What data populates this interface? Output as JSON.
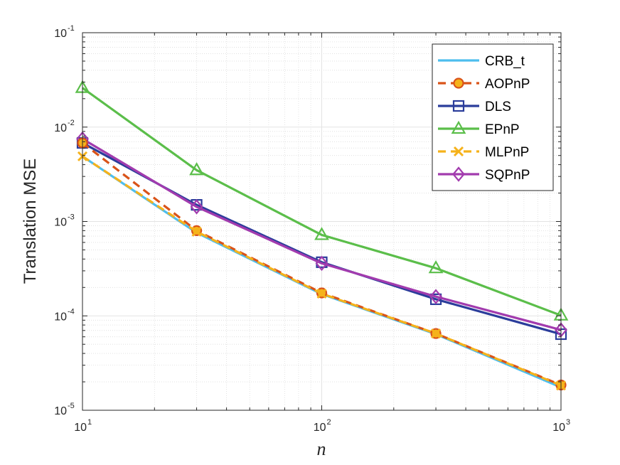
{
  "chart_data": {
    "type": "line",
    "xscale": "log",
    "yscale": "log",
    "xlabel": "n",
    "ylabel": "Translation MSE",
    "xlim": [
      10,
      1000
    ],
    "ylim": [
      1e-05,
      0.1
    ],
    "grid": true,
    "minor_grid": true,
    "legend_position": "top-right",
    "x_ticks": [
      {
        "base": "10",
        "exp": "1",
        "value": 10
      },
      {
        "base": "10",
        "exp": "2",
        "value": 100
      },
      {
        "base": "10",
        "exp": "3",
        "value": 1000
      }
    ],
    "y_ticks": [
      {
        "base": "10",
        "exp": "-5",
        "value": 1e-05
      },
      {
        "base": "10",
        "exp": "-4",
        "value": 0.0001
      },
      {
        "base": "10",
        "exp": "-3",
        "value": 0.001
      },
      {
        "base": "10",
        "exp": "-2",
        "value": 0.01
      },
      {
        "base": "10",
        "exp": "-1",
        "value": 0.1
      }
    ],
    "x": [
      10,
      30,
      100,
      300,
      1000
    ],
    "series": [
      {
        "name": "CRB_t",
        "color": "#4DBEEE",
        "dash": "solid",
        "marker": "none",
        "values": [
          0.0049,
          0.00076,
          0.00017,
          6.4e-05,
          1.75e-05
        ]
      },
      {
        "name": "AOPnP",
        "color": "#D95319",
        "dash": "dashed",
        "marker": "circle",
        "values": [
          0.0068,
          0.0008,
          0.000175,
          6.5e-05,
          1.85e-05
        ]
      },
      {
        "name": "DLS",
        "color": "#2B3D9B",
        "dash": "solid",
        "marker": "square",
        "values": [
          0.0068,
          0.0015,
          0.00037,
          0.00015,
          6.4e-05
        ]
      },
      {
        "name": "EPnP",
        "color": "#5BBE4A",
        "dash": "solid",
        "marker": "triangle",
        "values": [
          0.026,
          0.0035,
          0.00072,
          0.00032,
          0.000101
        ]
      },
      {
        "name": "MLPnP",
        "color": "#F5B21B",
        "dash": "dashed",
        "marker": "x",
        "values": [
          0.0049,
          0.00078,
          0.000172,
          6.5e-05,
          1.83e-05
        ]
      },
      {
        "name": "SQPnP",
        "color": "#A23BAE",
        "dash": "solid",
        "marker": "diamond",
        "values": [
          0.0075,
          0.00143,
          0.00036,
          0.00016,
          7.1e-05
        ]
      }
    ]
  }
}
